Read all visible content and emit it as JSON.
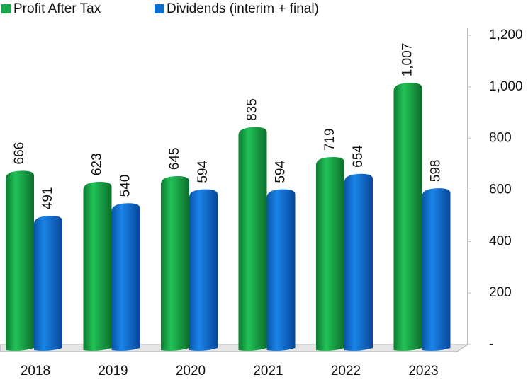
{
  "chart_data": {
    "type": "bar",
    "categories": [
      "2018",
      "2019",
      "2020",
      "2021",
      "2022",
      "2023"
    ],
    "series": [
      {
        "name": "Profit After Tax",
        "color": "#1aa64a",
        "values": [
          666,
          623,
          645,
          835,
          719,
          1007
        ],
        "value_labels": [
          "666",
          "623",
          "645",
          "835",
          "719",
          "1,007"
        ]
      },
      {
        "name": "Dividends (interim + final)",
        "color": "#0a6fd0",
        "values": [
          491,
          540,
          594,
          594,
          654,
          598
        ]
      }
    ],
    "ylim": [
      0,
      1200
    ],
    "yticks": [
      {
        "value": 0,
        "label": "-"
      },
      200,
      400,
      600,
      800,
      {
        "value": 1000,
        "label": "1,000"
      },
      {
        "value": 1200,
        "label": "1,200"
      }
    ],
    "legend": "top-left"
  }
}
